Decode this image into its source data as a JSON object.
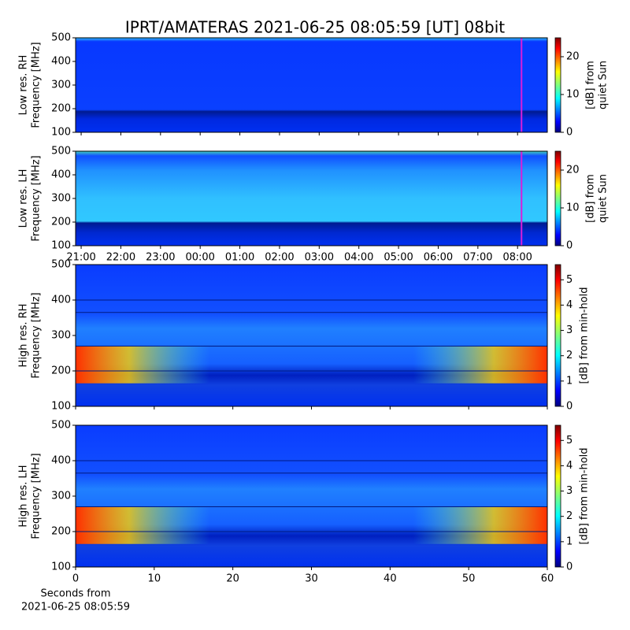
{
  "title": "IPRT/AMATERAS 2021-06-25 08:05:59 [UT]   08bit",
  "chart_data": [
    {
      "type": "heatmap",
      "ylabel": [
        "Low res. RH",
        "Frequency [MHz]"
      ],
      "ylim": [
        100,
        500
      ],
      "yticks": [
        100,
        200,
        300,
        400,
        500
      ],
      "xlim": [
        20.86,
        32.75
      ],
      "xticks": [
        21,
        22,
        23,
        24,
        25,
        26,
        27,
        28,
        29,
        30,
        31,
        32
      ],
      "xticklabels": false,
      "marker": {
        "x": 32.1,
        "color": "#d81fd8"
      },
      "colorbar": {
        "label": [
          "[dB] from",
          "quiet Sun"
        ],
        "lim": [
          0,
          25
        ],
        "ticks": [
          0,
          10,
          20
        ]
      }
    },
    {
      "type": "heatmap",
      "ylabel": [
        "Low res. LH",
        "Frequency [MHz]"
      ],
      "ylim": [
        100,
        500
      ],
      "yticks": [
        100,
        200,
        300,
        400,
        500
      ],
      "xlim": [
        20.86,
        32.75
      ],
      "xticks": [
        {
          "value": 21,
          "label": "21:00"
        },
        {
          "value": 22,
          "label": "22:00"
        },
        {
          "value": 23,
          "label": "23:00"
        },
        {
          "value": 24,
          "label": "00:00"
        },
        {
          "value": 25,
          "label": "01:00"
        },
        {
          "value": 26,
          "label": "02:00"
        },
        {
          "value": 27,
          "label": "03:00"
        },
        {
          "value": 28,
          "label": "04:00"
        },
        {
          "value": 29,
          "label": "05:00"
        },
        {
          "value": 30,
          "label": "06:00"
        },
        {
          "value": 31,
          "label": "07:00"
        },
        {
          "value": 32,
          "label": "08:00"
        }
      ],
      "marker": {
        "x": 32.1,
        "color": "#d81fd8"
      },
      "colorbar": {
        "label": [
          "[dB] from",
          "quiet Sun"
        ],
        "lim": [
          0,
          25
        ],
        "ticks": [
          0,
          10,
          20
        ]
      }
    },
    {
      "type": "heatmap",
      "ylabel": [
        "High res. RH",
        "Frequency [MHz]"
      ],
      "ylim": [
        100,
        500
      ],
      "yticks": [
        100,
        200,
        300,
        400,
        500
      ],
      "xlim": [
        0,
        60
      ],
      "xticks": [
        0,
        10,
        20,
        30,
        40,
        50,
        60
      ],
      "xticklabels": false,
      "colorbar": {
        "label": [
          "[dB] from min-hold"
        ],
        "lim": [
          0,
          5.6
        ],
        "ticks": [
          0,
          1,
          2,
          3,
          4,
          5
        ]
      }
    },
    {
      "type": "heatmap",
      "ylabel": [
        "High res. LH",
        "Frequency [MHz]"
      ],
      "ylim": [
        100,
        500
      ],
      "yticks": [
        100,
        200,
        300,
        400,
        500
      ],
      "xlim": [
        0,
        60
      ],
      "xticks": [
        0,
        10,
        20,
        30,
        40,
        50,
        60
      ],
      "xlabel": [
        "Seconds from",
        "2021-06-25 08:05:59"
      ],
      "colorbar": {
        "label": [
          "[dB] from min-hold"
        ],
        "lim": [
          0,
          5.6
        ],
        "ticks": [
          0,
          1,
          2,
          3,
          4,
          5
        ]
      }
    }
  ]
}
